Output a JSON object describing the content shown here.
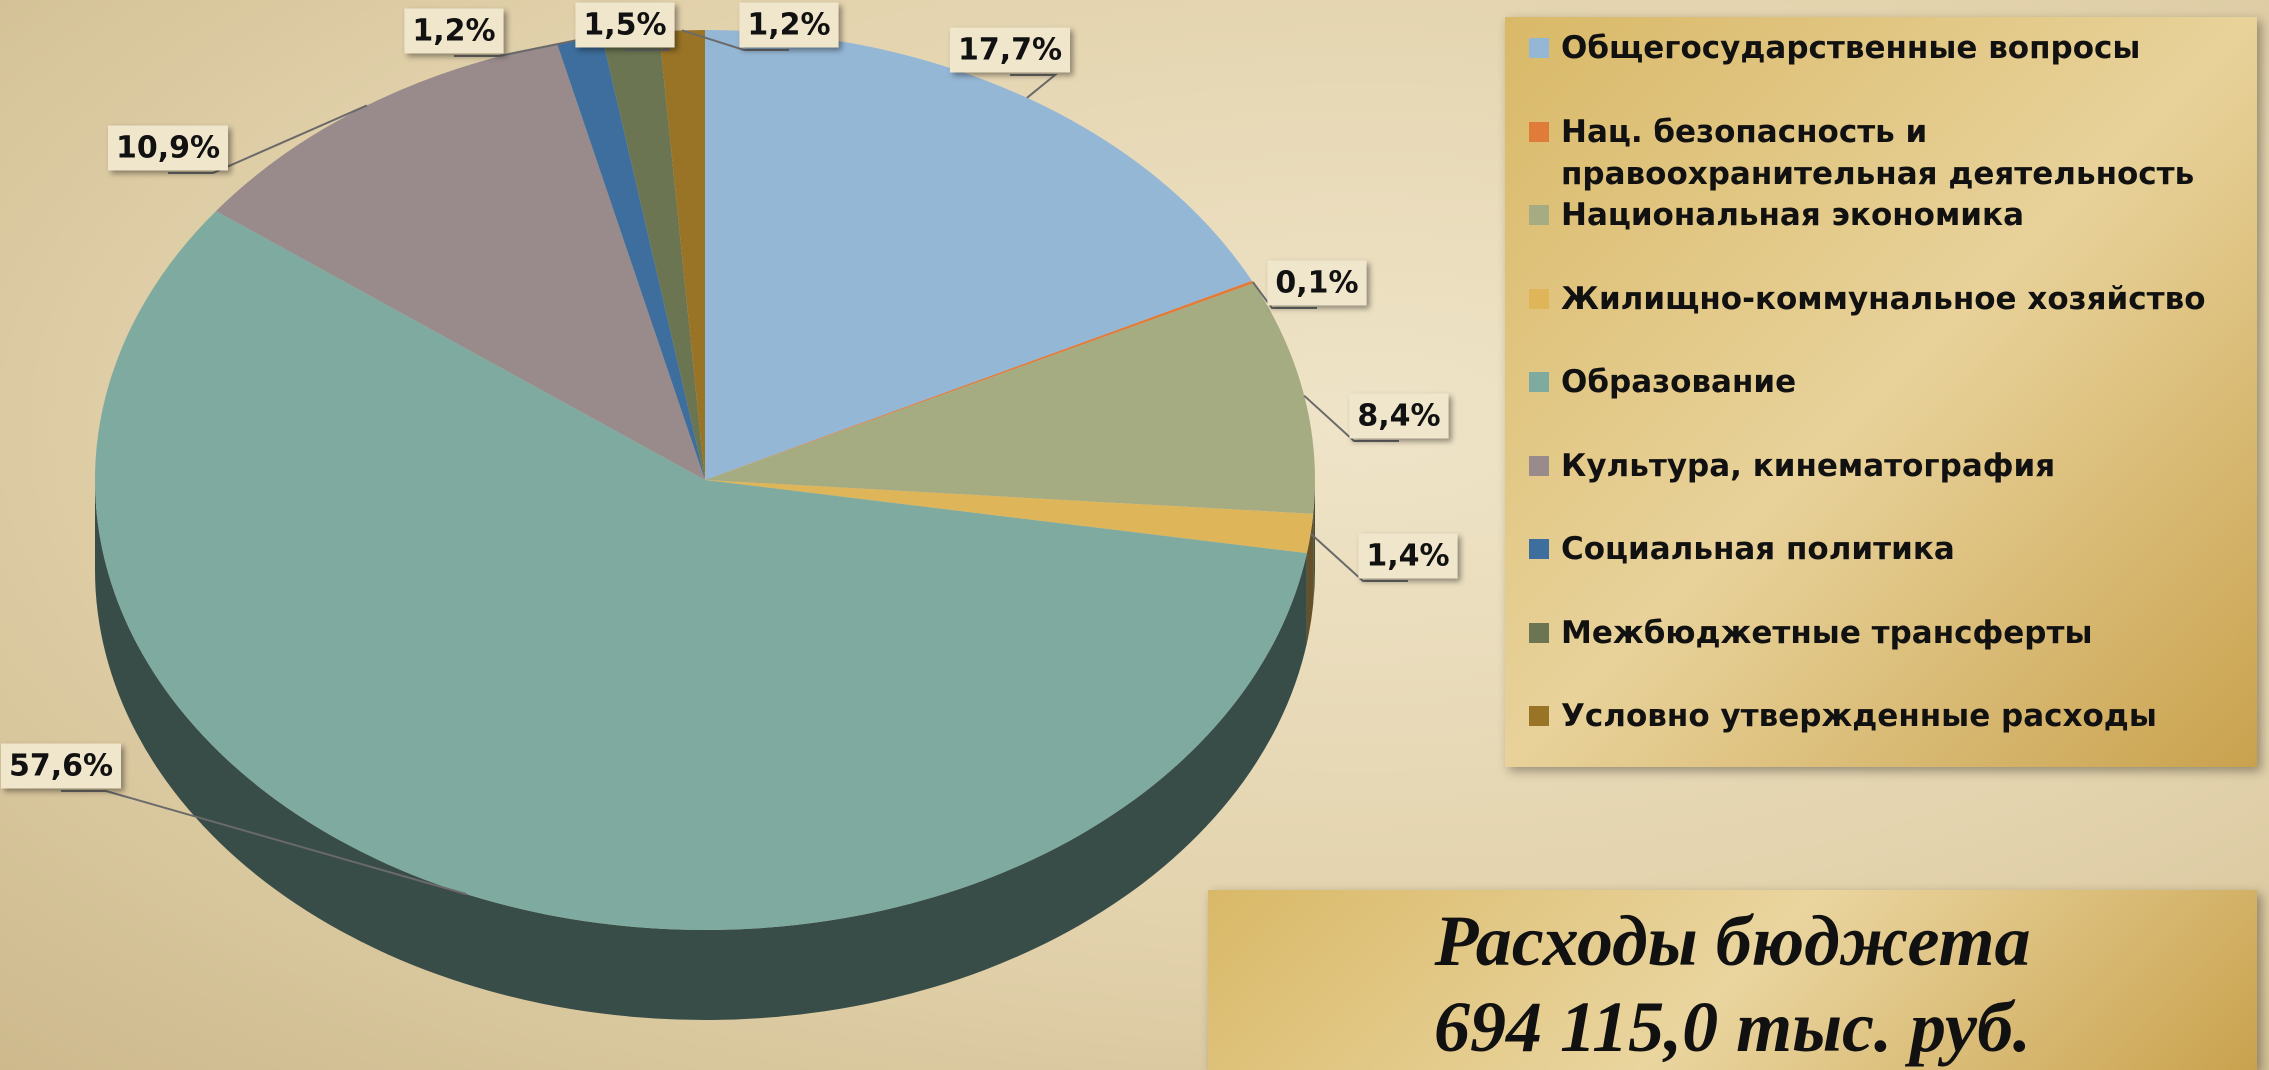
{
  "chart_data": {
    "type": "pie3d",
    "title": "Расходы бюджета",
    "subtitle": "694 115,0 тыс. руб.",
    "categories": [
      "Общегосударственные вопросы",
      "Нац. безопасность и правоохранительная деятельность",
      "Национальная экономика",
      "Жилищно-коммунальное хозяйство",
      "Образование",
      "Культура, кинематография",
      "Социальная политика",
      "Межбюджетные трансферты",
      "Условно утвержденные расходы"
    ],
    "values": [
      17.7,
      0.1,
      8.4,
      1.4,
      57.6,
      10.9,
      1.2,
      1.5,
      1.2
    ],
    "value_labels": [
      "17,7%",
      "0,1%",
      "8,4%",
      "1,4%",
      "57,6%",
      "10,9%",
      "1,2%",
      "1,5%",
      "1,2%"
    ],
    "colors": [
      "#95b7d6",
      "#e07b3a",
      "#a5ac82",
      "#dfb55a",
      "#7eaaa0",
      "#998a8c",
      "#3e6e9d",
      "#6b7552",
      "#9a7426"
    ],
    "legend": "right"
  }
}
